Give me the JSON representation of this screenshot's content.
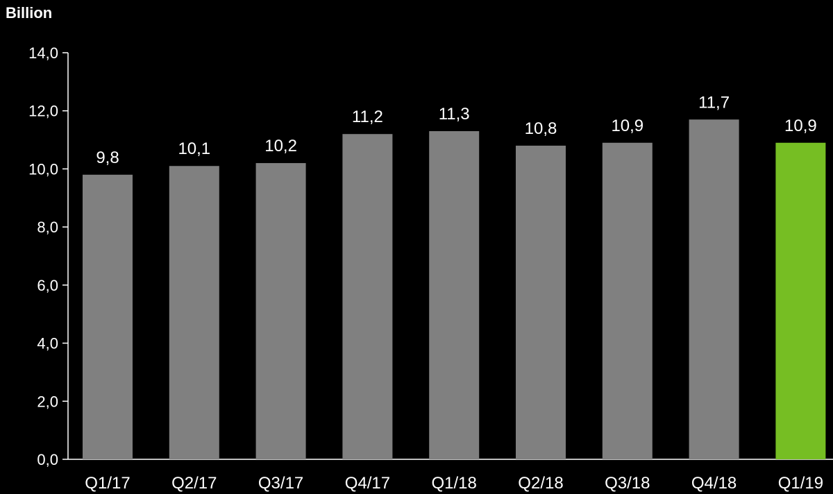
{
  "chart_data": {
    "type": "bar",
    "title": "",
    "unit_label": "Billion",
    "xlabel": "",
    "ylabel": "",
    "ylim": [
      0,
      14
    ],
    "y_ticks": [
      0,
      2,
      4,
      6,
      8,
      10,
      12,
      14
    ],
    "y_tick_labels": [
      "0,0",
      "2,0",
      "4,0",
      "6,0",
      "8,0",
      "10,0",
      "12,0",
      "14,0"
    ],
    "categories": [
      "Q1/17",
      "Q2/17",
      "Q3/17",
      "Q4/17",
      "Q1/18",
      "Q2/18",
      "Q3/18",
      "Q4/18",
      "Q1/19"
    ],
    "values": [
      9.8,
      10.1,
      10.2,
      11.2,
      11.3,
      10.8,
      10.9,
      11.7,
      10.9
    ],
    "value_labels": [
      "9,8",
      "10,1",
      "10,2",
      "11,2",
      "11,3",
      "10,8",
      "10,9",
      "11,7",
      "10,9"
    ],
    "bar_colors": [
      "#808080",
      "#808080",
      "#808080",
      "#808080",
      "#808080",
      "#808080",
      "#808080",
      "#808080",
      "#76be23"
    ],
    "grid": false,
    "legend": "none"
  }
}
